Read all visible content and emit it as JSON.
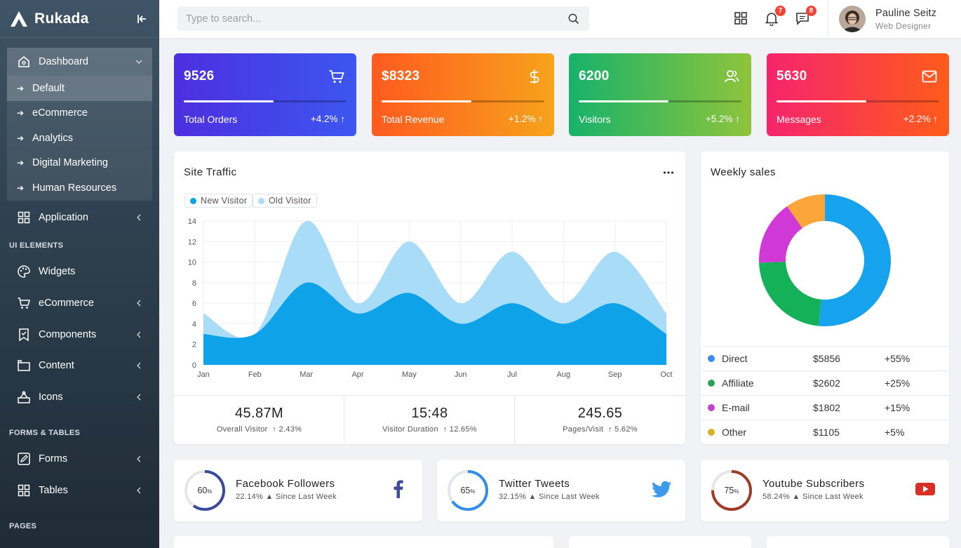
{
  "app": {
    "name": "Rukada"
  },
  "sidebar": {
    "dashboard": {
      "label": "Dashboard",
      "children": [
        "Default",
        "eCommerce",
        "Analytics",
        "Digital Marketing",
        "Human Resources"
      ]
    },
    "application": "Application",
    "sections": {
      "ui": "UI ELEMENTS",
      "forms": "FORMS & TABLES",
      "pages": "PAGES"
    },
    "ui_items": [
      "Widgets",
      "eCommerce",
      "Components",
      "Content",
      "Icons"
    ],
    "form_items": [
      "Forms",
      "Tables"
    ]
  },
  "topbar": {
    "search_placeholder": "Type to search...",
    "notifications_count": "7",
    "messages_count": "8",
    "user": {
      "name": "Pauline Seitz",
      "role": "Web Designer"
    }
  },
  "stats": [
    {
      "value": "9526",
      "label": "Total Orders",
      "change": "+4.2%",
      "progress": 0.55,
      "icon": "cart-icon",
      "colors": [
        "#4d2fe0",
        "#3c56f0"
      ]
    },
    {
      "value": "$8323",
      "label": "Total Revenue",
      "change": "+1.2%",
      "progress": 0.55,
      "icon": "dollar-icon",
      "colors": [
        "#ff5a1f",
        "#f7a31c"
      ]
    },
    {
      "value": "6200",
      "label": "Visitors",
      "change": "+5.2%",
      "progress": 0.55,
      "icon": "users-icon",
      "colors": [
        "#17b26a",
        "#8fc43b"
      ]
    },
    {
      "value": "5630",
      "label": "Messages",
      "change": "+2.2%",
      "progress": 0.55,
      "icon": "mail-icon",
      "colors": [
        "#f5246d",
        "#ff5c1a"
      ]
    }
  ],
  "site_traffic": {
    "title": "Site Traffic",
    "metrics": [
      {
        "value": "45.87M",
        "label": "Overall Visitor",
        "change": "2.43%"
      },
      {
        "value": "15:48",
        "label": "Visitor Duration",
        "change": "12.65%"
      },
      {
        "value": "245.65",
        "label": "Pages/Visit",
        "change": "5.62%"
      }
    ]
  },
  "chart_data": [
    {
      "type": "area",
      "title": "Site Traffic",
      "x": [
        "Jan",
        "Feb",
        "Mar",
        "Apr",
        "May",
        "Jun",
        "Jul",
        "Aug",
        "Sep",
        "Oct"
      ],
      "ylim": [
        0,
        14
      ],
      "yticks": [
        0,
        2,
        4,
        6,
        8,
        10,
        12,
        14
      ],
      "grid": true,
      "legend": "top-left",
      "series": [
        {
          "name": "New Visitor",
          "color": "#0ea2e8",
          "values": [
            3,
            3,
            8,
            5,
            7,
            4,
            6,
            4,
            6,
            3
          ]
        },
        {
          "name": "Old Visitor",
          "color": "#a9dcf6",
          "values": [
            5,
            3,
            14,
            6,
            12,
            6,
            11,
            6,
            11,
            5
          ]
        }
      ]
    },
    {
      "type": "pie",
      "title": "Weekly sales",
      "categories": [
        "Direct",
        "Affiliate",
        "E-mail",
        "Other"
      ],
      "values": [
        5856,
        2602,
        1802,
        1105
      ],
      "changes": [
        "+55%",
        "+25%",
        "+15%",
        "+5%"
      ],
      "amounts": [
        "$5856",
        "$2602",
        "$1802",
        "$1105"
      ],
      "colors": [
        "#17a2ee",
        "#14b158",
        "#d139d6",
        "#fca63a"
      ]
    }
  ],
  "social": [
    {
      "title": "Facebook Followers",
      "percent": 60,
      "percent_label": "60",
      "change": "22.14%",
      "since": "Since Last Week",
      "color": "#3a4a9c",
      "icon": "facebook-icon"
    },
    {
      "title": "Twitter Tweets",
      "percent": 65,
      "percent_label": "65",
      "change": "32.15%",
      "since": "Since Last Week",
      "color": "#2f8fe8",
      "icon": "twitter-icon"
    },
    {
      "title": "Youtube Subscribers",
      "percent": 75,
      "percent_label": "75",
      "change": "58.24%",
      "since": "Since Last Week",
      "color": "#a23a2a",
      "icon": "youtube-icon"
    }
  ]
}
